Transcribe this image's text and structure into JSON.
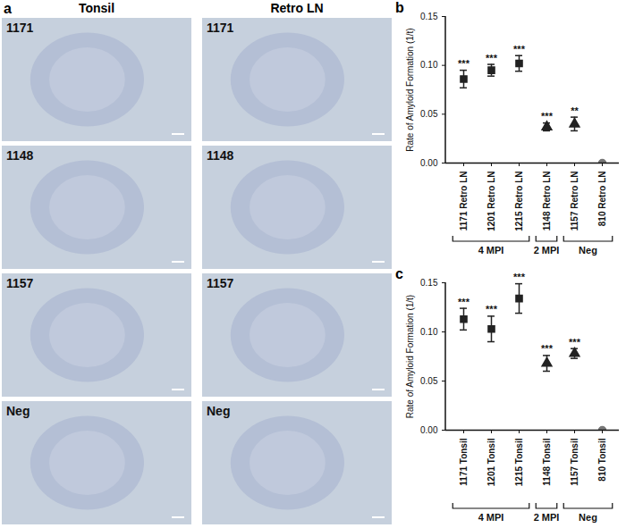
{
  "panel_a": {
    "label": "a",
    "columns": [
      "Tonsil",
      "Retro LN"
    ],
    "rows": [
      "1171",
      "1148",
      "1157",
      "Neg"
    ]
  },
  "chart_data": [
    {
      "type": "scatter",
      "panel_label": "b",
      "y_label": "Rate of Amyloid Formation (1/t)",
      "categories": [
        "1171 Retro LN",
        "1201 Retro LN",
        "1215 Retro LN",
        "1148 Retro LN",
        "1157 Retro LN",
        "810 Retro LN"
      ],
      "series": [
        {
          "marker": "square",
          "color": "#222222",
          "values": [
            0.086,
            0.095,
            0.102,
            null,
            null,
            null
          ],
          "errors": [
            0.009,
            0.006,
            0.008,
            null,
            null,
            null
          ]
        },
        {
          "marker": "triangle",
          "color": "#222222",
          "values": [
            null,
            null,
            null,
            0.037,
            0.04,
            null
          ],
          "errors": [
            null,
            null,
            null,
            0.004,
            0.007,
            null
          ]
        },
        {
          "marker": "circle",
          "color": "#777777",
          "values": [
            null,
            null,
            null,
            null,
            null,
            0.0
          ],
          "errors": [
            null,
            null,
            null,
            null,
            null,
            0.0
          ]
        }
      ],
      "annotations": [
        "***",
        "***",
        "***",
        "***",
        "**",
        null
      ],
      "groups": [
        {
          "label": "4 MPI",
          "categories": [
            "1171 Retro LN",
            "1201 Retro LN",
            "1215 Retro LN"
          ]
        },
        {
          "label": "2 MPI",
          "categories": [
            "1148 Retro LN"
          ]
        },
        {
          "label": "Neg",
          "categories": [
            "1157 Retro LN",
            "810 Retro LN"
          ]
        }
      ],
      "ylim": [
        0,
        0.15
      ],
      "yticks": [
        {
          "value": 0,
          "label": "0.00"
        },
        {
          "value": 0.05,
          "label": "0.05"
        },
        {
          "value": 0.1,
          "label": "0.10"
        },
        {
          "value": 0.15,
          "label": "0.15"
        }
      ]
    },
    {
      "type": "scatter",
      "panel_label": "c",
      "y_label": "Rate of Amyloid Formation (1/t)",
      "categories": [
        "1171 Tonsil",
        "1201 Tonsil",
        "1215 Tonsil",
        "1148 Tonsil",
        "1157 Tonsil",
        "810 Tonsil"
      ],
      "series": [
        {
          "marker": "square",
          "color": "#222222",
          "values": [
            0.113,
            0.103,
            0.134,
            null,
            null,
            null
          ],
          "errors": [
            0.011,
            0.013,
            0.015,
            null,
            null,
            null
          ]
        },
        {
          "marker": "triangle",
          "color": "#222222",
          "values": [
            null,
            null,
            null,
            0.068,
            0.078,
            null
          ],
          "errors": [
            null,
            null,
            null,
            0.008,
            0.005,
            null
          ]
        },
        {
          "marker": "circle",
          "color": "#777777",
          "values": [
            null,
            null,
            null,
            null,
            null,
            0.0
          ],
          "errors": [
            null,
            null,
            null,
            null,
            null,
            0.0
          ]
        }
      ],
      "annotations": [
        "***",
        "***",
        "***",
        "***",
        "***",
        null
      ],
      "groups": [
        {
          "label": "4 MPI",
          "categories": [
            "1171 Tonsil",
            "1201 Tonsil",
            "1215 Tonsil"
          ]
        },
        {
          "label": "2 MPI",
          "categories": [
            "1148 Tonsil"
          ]
        },
        {
          "label": "Neg",
          "categories": [
            "1157 Tonsil",
            "810 Tonsil"
          ]
        }
      ],
      "ylim": [
        0,
        0.15
      ],
      "yticks": [
        {
          "value": 0,
          "label": "0.00"
        },
        {
          "value": 0.05,
          "label": "0.05"
        },
        {
          "value": 0.1,
          "label": "0.10"
        },
        {
          "value": 0.15,
          "label": "0.15"
        }
      ]
    }
  ]
}
